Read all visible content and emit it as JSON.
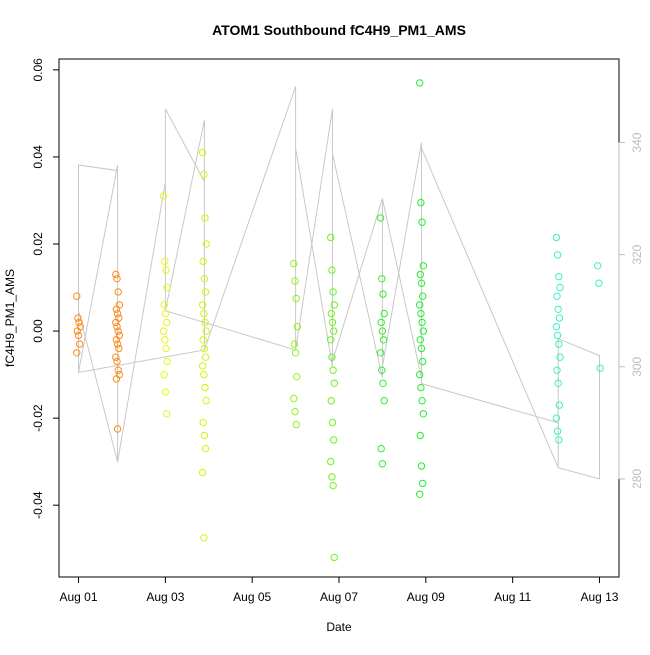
{
  "chart_data": {
    "type": "scatter",
    "title": "ATOM1 Southbound fC4H9_PM1_AMS",
    "xlabel": "Date",
    "ylabel": "fC4H9_PM1_AMS",
    "x_ticks": [
      {
        "label": "Aug 01",
        "day": 1
      },
      {
        "label": "Aug 03",
        "day": 3
      },
      {
        "label": "Aug 05",
        "day": 5
      },
      {
        "label": "Aug 07",
        "day": 7
      },
      {
        "label": "Aug 09",
        "day": 9
      },
      {
        "label": "Aug 11",
        "day": 11
      },
      {
        "label": "Aug 13",
        "day": 13
      }
    ],
    "xlim_days": [
      0.55,
      13.45
    ],
    "ylim": [
      -0.0565,
      0.0625
    ],
    "y_ticks": [
      {
        "value": -0.04,
        "label": "-0.04"
      },
      {
        "value": -0.02,
        "label": "-0.02"
      },
      {
        "value": 0.0,
        "label": "0.00"
      },
      {
        "value": 0.02,
        "label": "0.02"
      },
      {
        "value": 0.04,
        "label": "0.04"
      },
      {
        "value": 0.06,
        "label": "0.06"
      }
    ],
    "y2_ticks": [
      {
        "value": 280,
        "label": "280"
      },
      {
        "value": 300,
        "label": "300"
      },
      {
        "value": 320,
        "label": "320"
      },
      {
        "value": 340,
        "label": "340"
      }
    ],
    "y2lim": [
      262.5,
      354.9
    ],
    "grid": false,
    "colors": {
      "frame": "#000000",
      "secondary_axis": "#bdbdbd",
      "secondary_line": "#c8c8c8"
    },
    "point_groups": [
      {
        "day": 1.0,
        "color": "#ff8c1a",
        "y": [
          0.008,
          0.003,
          0.002,
          0.001,
          0.0,
          -0.001,
          -0.003,
          -0.005
        ]
      },
      {
        "day": 1.9,
        "color": "#ff8c1a",
        "y": [
          0.013,
          0.012,
          0.009,
          0.006,
          0.005,
          0.004,
          0.003,
          0.002,
          0.001,
          0.0,
          -0.001,
          -0.002,
          -0.003,
          -0.004,
          -0.006,
          -0.007,
          -0.009,
          -0.01,
          -0.011,
          -0.0225
        ]
      },
      {
        "day": 3.0,
        "color": "#e8f515",
        "y": [
          0.031,
          0.016,
          0.014,
          0.01,
          0.006,
          0.004,
          0.002,
          0.0,
          -0.002,
          -0.004,
          -0.007,
          -0.01,
          -0.014,
          -0.019
        ]
      },
      {
        "day": 3.9,
        "color": "#d2f50e",
        "y": [
          0.041,
          0.036,
          0.026,
          0.02,
          0.016,
          0.012,
          0.009,
          0.006,
          0.004,
          0.002,
          0.0,
          -0.002,
          -0.004,
          -0.006,
          -0.008,
          -0.01,
          -0.013,
          -0.016,
          -0.021,
          -0.024,
          -0.027,
          -0.0325,
          -0.0475
        ]
      },
      {
        "day": 6.0,
        "color": "#8df51a",
        "y": [
          0.0155,
          0.0115,
          0.0075,
          0.001,
          -0.003,
          -0.005,
          -0.0105,
          -0.0155,
          -0.0185,
          -0.0215
        ]
      },
      {
        "day": 6.85,
        "color": "#6cf51a",
        "y": [
          0.0215,
          0.014,
          0.009,
          0.006,
          0.004,
          0.002,
          0.0,
          -0.002,
          -0.006,
          -0.009,
          -0.012,
          -0.016,
          -0.021,
          -0.025,
          -0.03,
          -0.0335,
          -0.0355,
          -0.052
        ]
      },
      {
        "day": 8.0,
        "color": "#2fef2c",
        "y": [
          0.026,
          0.012,
          0.0085,
          0.004,
          0.002,
          0.0,
          -0.002,
          -0.005,
          -0.009,
          -0.012,
          -0.016,
          -0.027,
          -0.0305
        ]
      },
      {
        "day": 8.9,
        "color": "#1fef30",
        "y": [
          0.057,
          0.0295,
          0.025,
          0.015,
          0.013,
          0.011,
          0.008,
          0.006,
          0.004,
          0.002,
          0.0,
          -0.002,
          -0.004,
          -0.007,
          -0.01,
          -0.013,
          -0.016,
          -0.019,
          -0.024,
          -0.031,
          -0.035,
          -0.0375
        ]
      },
      {
        "day": 12.05,
        "color": "#3cefc7",
        "y": [
          0.0215,
          0.0175,
          0.0125,
          0.01,
          0.008,
          0.005,
          0.003,
          0.001,
          -0.001,
          -0.003,
          -0.006,
          -0.009,
          -0.012,
          -0.017,
          -0.02,
          -0.023,
          -0.025
        ]
      },
      {
        "day": 13.0,
        "color": "#3cefc7",
        "y": [
          0.015,
          0.011,
          -0.0085
        ]
      }
    ],
    "secondary_line": {
      "x_days": [
        1.0,
        1.0,
        1.9,
        1.9,
        1.0,
        1.0,
        3.9,
        3.9,
        3.0,
        3.0,
        6.0,
        6.0,
        6.85,
        6.85,
        8.0,
        8.0,
        8.9,
        8.9,
        12.05,
        12.05,
        13.0,
        13.0,
        12.05,
        12.05,
        8.9,
        8.9,
        8.0,
        8.0,
        6.85,
        6.85,
        6.0,
        6.0,
        3.9,
        3.9,
        3.0,
        3.0,
        1.9,
        1.9,
        1.0
      ],
      "y": [
        299.0,
        336.0,
        335.0,
        283.0,
        310.0,
        299.0,
        303.0,
        333.0,
        346.0,
        310.0,
        303.0,
        339.0,
        300.0,
        338.0,
        298.0,
        330.0,
        298.0,
        339.0,
        282.0,
        305.0,
        302.0,
        280.0,
        282.0,
        290.0,
        297.0,
        340.0,
        300.0,
        330.0,
        301.0,
        346.0,
        303.0,
        350.0,
        303.0,
        344.0,
        310.0,
        333.0,
        283.0,
        336.0,
        299.0
      ]
    }
  }
}
